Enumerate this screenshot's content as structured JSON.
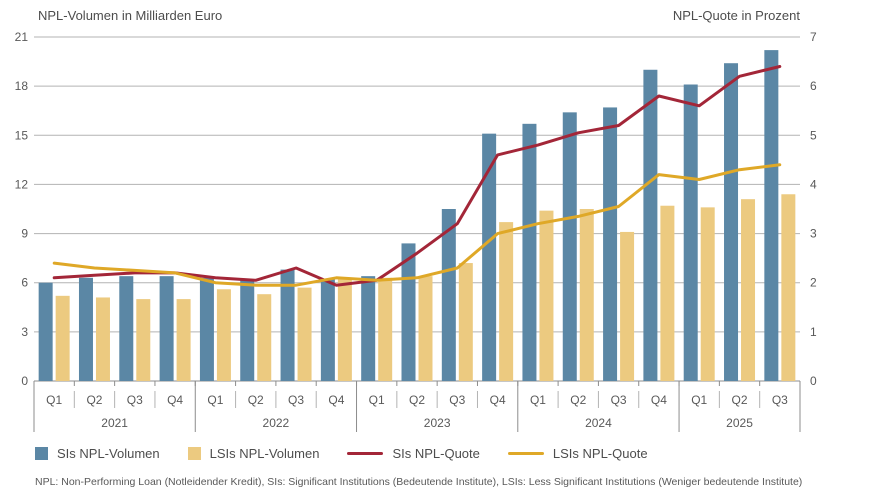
{
  "chart": {
    "left_axis_title": "NPL-Volumen in Milliarden Euro",
    "right_axis_title": "NPL-Quote in Prozent",
    "legend": [
      {
        "label": "SIs NPL-Volumen",
        "swatch": "square",
        "color": "#5b87a5"
      },
      {
        "label": "LSIs NPL-Volumen",
        "swatch": "square",
        "color": "#ecca80"
      },
      {
        "label": "SIs NPL-Quote",
        "swatch": "line",
        "color": "#a32638"
      },
      {
        "label": "LSIs NPL-Quote",
        "swatch": "line",
        "color": "#dfa827"
      }
    ],
    "footnote": "NPL: Non-Performing Loan (Notleidender Kredit), SIs: Significant Institutions (Bedeutende Institute), LSIs: Less Significant Institutions  (Weniger bedeutende Institute)"
  },
  "chart_data": {
    "type": "bar",
    "subtype": "grouped-bar-with-lines-dual-axis",
    "quarters": [
      "Q1",
      "Q2",
      "Q3",
      "Q4",
      "Q1",
      "Q2",
      "Q3",
      "Q4",
      "Q1",
      "Q2",
      "Q3",
      "Q4",
      "Q1",
      "Q2",
      "Q3",
      "Q4",
      "Q1",
      "Q2",
      "Q3"
    ],
    "year_groups": [
      {
        "label": "2021",
        "count": 4
      },
      {
        "label": "2022",
        "count": 4
      },
      {
        "label": "2023",
        "count": 4
      },
      {
        "label": "2024",
        "count": 4
      },
      {
        "label": "2025",
        "count": 3
      }
    ],
    "series": [
      {
        "name": "SIs NPL-Volumen",
        "type": "bar",
        "axis": "left",
        "color": "#5b87a5",
        "values": [
          6.0,
          6.3,
          6.4,
          6.4,
          6.3,
          6.2,
          6.8,
          6.2,
          6.4,
          8.4,
          10.5,
          15.1,
          15.7,
          16.4,
          16.7,
          19.0,
          18.1,
          19.4,
          20.2
        ]
      },
      {
        "name": "LSIs NPL-Volumen",
        "type": "bar",
        "axis": "left",
        "color": "#ecca80",
        "values": [
          5.2,
          5.1,
          5.0,
          5.0,
          5.6,
          5.3,
          5.7,
          6.3,
          6.3,
          6.4,
          7.2,
          9.7,
          10.4,
          10.5,
          9.1,
          10.7,
          10.6,
          11.1,
          11.4
        ]
      },
      {
        "name": "SIs NPL-Quote",
        "type": "line",
        "axis": "right",
        "color": "#a32638",
        "values": [
          2.1,
          2.15,
          2.2,
          2.2,
          2.1,
          2.05,
          2.3,
          1.95,
          2.05,
          2.6,
          3.2,
          4.6,
          4.8,
          5.05,
          5.2,
          5.8,
          5.6,
          6.2,
          6.4
        ]
      },
      {
        "name": "LSIs NPL-Quote",
        "type": "line",
        "axis": "right",
        "color": "#dfa827",
        "values": [
          2.4,
          2.3,
          2.25,
          2.2,
          2.0,
          1.95,
          1.95,
          2.1,
          2.05,
          2.1,
          2.3,
          3.0,
          3.2,
          3.35,
          3.55,
          4.2,
          4.1,
          4.3,
          4.4
        ]
      }
    ],
    "left_axis": {
      "title": "NPL-Volumen in Milliarden Euro",
      "min": 0,
      "max": 21,
      "ticks": [
        21,
        18,
        15,
        12,
        9,
        6,
        3,
        0
      ]
    },
    "right_axis": {
      "title": "NPL-Quote in Prozent",
      "min": 0,
      "max": 7,
      "ticks": [
        7,
        6,
        5,
        4,
        3,
        2,
        1,
        0
      ]
    },
    "grid": true,
    "legend_position": "bottom"
  }
}
